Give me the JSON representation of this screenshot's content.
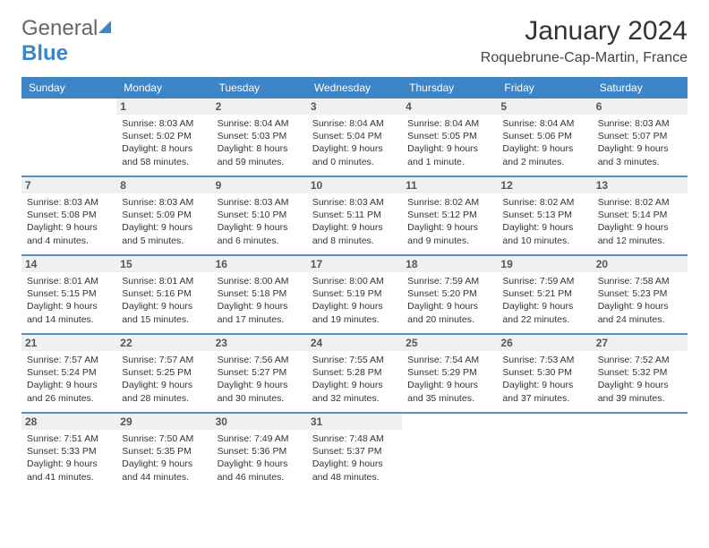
{
  "brand": {
    "part1": "General",
    "part2": "Blue"
  },
  "header": {
    "month": "January 2024",
    "location": "Roquebrune-Cap-Martin, France"
  },
  "colors": {
    "accent": "#3d85c6",
    "row_divider": "#5a8fbf",
    "daynum_bg": "#eef0f2",
    "text": "#333333"
  },
  "daysOfWeek": [
    "Sunday",
    "Monday",
    "Tuesday",
    "Wednesday",
    "Thursday",
    "Friday",
    "Saturday"
  ],
  "startOffset": 1,
  "days": [
    {
      "n": 1,
      "sr": "8:03 AM",
      "ss": "5:02 PM",
      "dl": "8 hours and 58 minutes."
    },
    {
      "n": 2,
      "sr": "8:04 AM",
      "ss": "5:03 PM",
      "dl": "8 hours and 59 minutes."
    },
    {
      "n": 3,
      "sr": "8:04 AM",
      "ss": "5:04 PM",
      "dl": "9 hours and 0 minutes."
    },
    {
      "n": 4,
      "sr": "8:04 AM",
      "ss": "5:05 PM",
      "dl": "9 hours and 1 minute."
    },
    {
      "n": 5,
      "sr": "8:04 AM",
      "ss": "5:06 PM",
      "dl": "9 hours and 2 minutes."
    },
    {
      "n": 6,
      "sr": "8:03 AM",
      "ss": "5:07 PM",
      "dl": "9 hours and 3 minutes."
    },
    {
      "n": 7,
      "sr": "8:03 AM",
      "ss": "5:08 PM",
      "dl": "9 hours and 4 minutes."
    },
    {
      "n": 8,
      "sr": "8:03 AM",
      "ss": "5:09 PM",
      "dl": "9 hours and 5 minutes."
    },
    {
      "n": 9,
      "sr": "8:03 AM",
      "ss": "5:10 PM",
      "dl": "9 hours and 6 minutes."
    },
    {
      "n": 10,
      "sr": "8:03 AM",
      "ss": "5:11 PM",
      "dl": "9 hours and 8 minutes."
    },
    {
      "n": 11,
      "sr": "8:02 AM",
      "ss": "5:12 PM",
      "dl": "9 hours and 9 minutes."
    },
    {
      "n": 12,
      "sr": "8:02 AM",
      "ss": "5:13 PM",
      "dl": "9 hours and 10 minutes."
    },
    {
      "n": 13,
      "sr": "8:02 AM",
      "ss": "5:14 PM",
      "dl": "9 hours and 12 minutes."
    },
    {
      "n": 14,
      "sr": "8:01 AM",
      "ss": "5:15 PM",
      "dl": "9 hours and 14 minutes."
    },
    {
      "n": 15,
      "sr": "8:01 AM",
      "ss": "5:16 PM",
      "dl": "9 hours and 15 minutes."
    },
    {
      "n": 16,
      "sr": "8:00 AM",
      "ss": "5:18 PM",
      "dl": "9 hours and 17 minutes."
    },
    {
      "n": 17,
      "sr": "8:00 AM",
      "ss": "5:19 PM",
      "dl": "9 hours and 19 minutes."
    },
    {
      "n": 18,
      "sr": "7:59 AM",
      "ss": "5:20 PM",
      "dl": "9 hours and 20 minutes."
    },
    {
      "n": 19,
      "sr": "7:59 AM",
      "ss": "5:21 PM",
      "dl": "9 hours and 22 minutes."
    },
    {
      "n": 20,
      "sr": "7:58 AM",
      "ss": "5:23 PM",
      "dl": "9 hours and 24 minutes."
    },
    {
      "n": 21,
      "sr": "7:57 AM",
      "ss": "5:24 PM",
      "dl": "9 hours and 26 minutes."
    },
    {
      "n": 22,
      "sr": "7:57 AM",
      "ss": "5:25 PM",
      "dl": "9 hours and 28 minutes."
    },
    {
      "n": 23,
      "sr": "7:56 AM",
      "ss": "5:27 PM",
      "dl": "9 hours and 30 minutes."
    },
    {
      "n": 24,
      "sr": "7:55 AM",
      "ss": "5:28 PM",
      "dl": "9 hours and 32 minutes."
    },
    {
      "n": 25,
      "sr": "7:54 AM",
      "ss": "5:29 PM",
      "dl": "9 hours and 35 minutes."
    },
    {
      "n": 26,
      "sr": "7:53 AM",
      "ss": "5:30 PM",
      "dl": "9 hours and 37 minutes."
    },
    {
      "n": 27,
      "sr": "7:52 AM",
      "ss": "5:32 PM",
      "dl": "9 hours and 39 minutes."
    },
    {
      "n": 28,
      "sr": "7:51 AM",
      "ss": "5:33 PM",
      "dl": "9 hours and 41 minutes."
    },
    {
      "n": 29,
      "sr": "7:50 AM",
      "ss": "5:35 PM",
      "dl": "9 hours and 44 minutes."
    },
    {
      "n": 30,
      "sr": "7:49 AM",
      "ss": "5:36 PM",
      "dl": "9 hours and 46 minutes."
    },
    {
      "n": 31,
      "sr": "7:48 AM",
      "ss": "5:37 PM",
      "dl": "9 hours and 48 minutes."
    }
  ],
  "labels": {
    "sunrise": "Sunrise:",
    "sunset": "Sunset:",
    "daylight": "Daylight:"
  }
}
